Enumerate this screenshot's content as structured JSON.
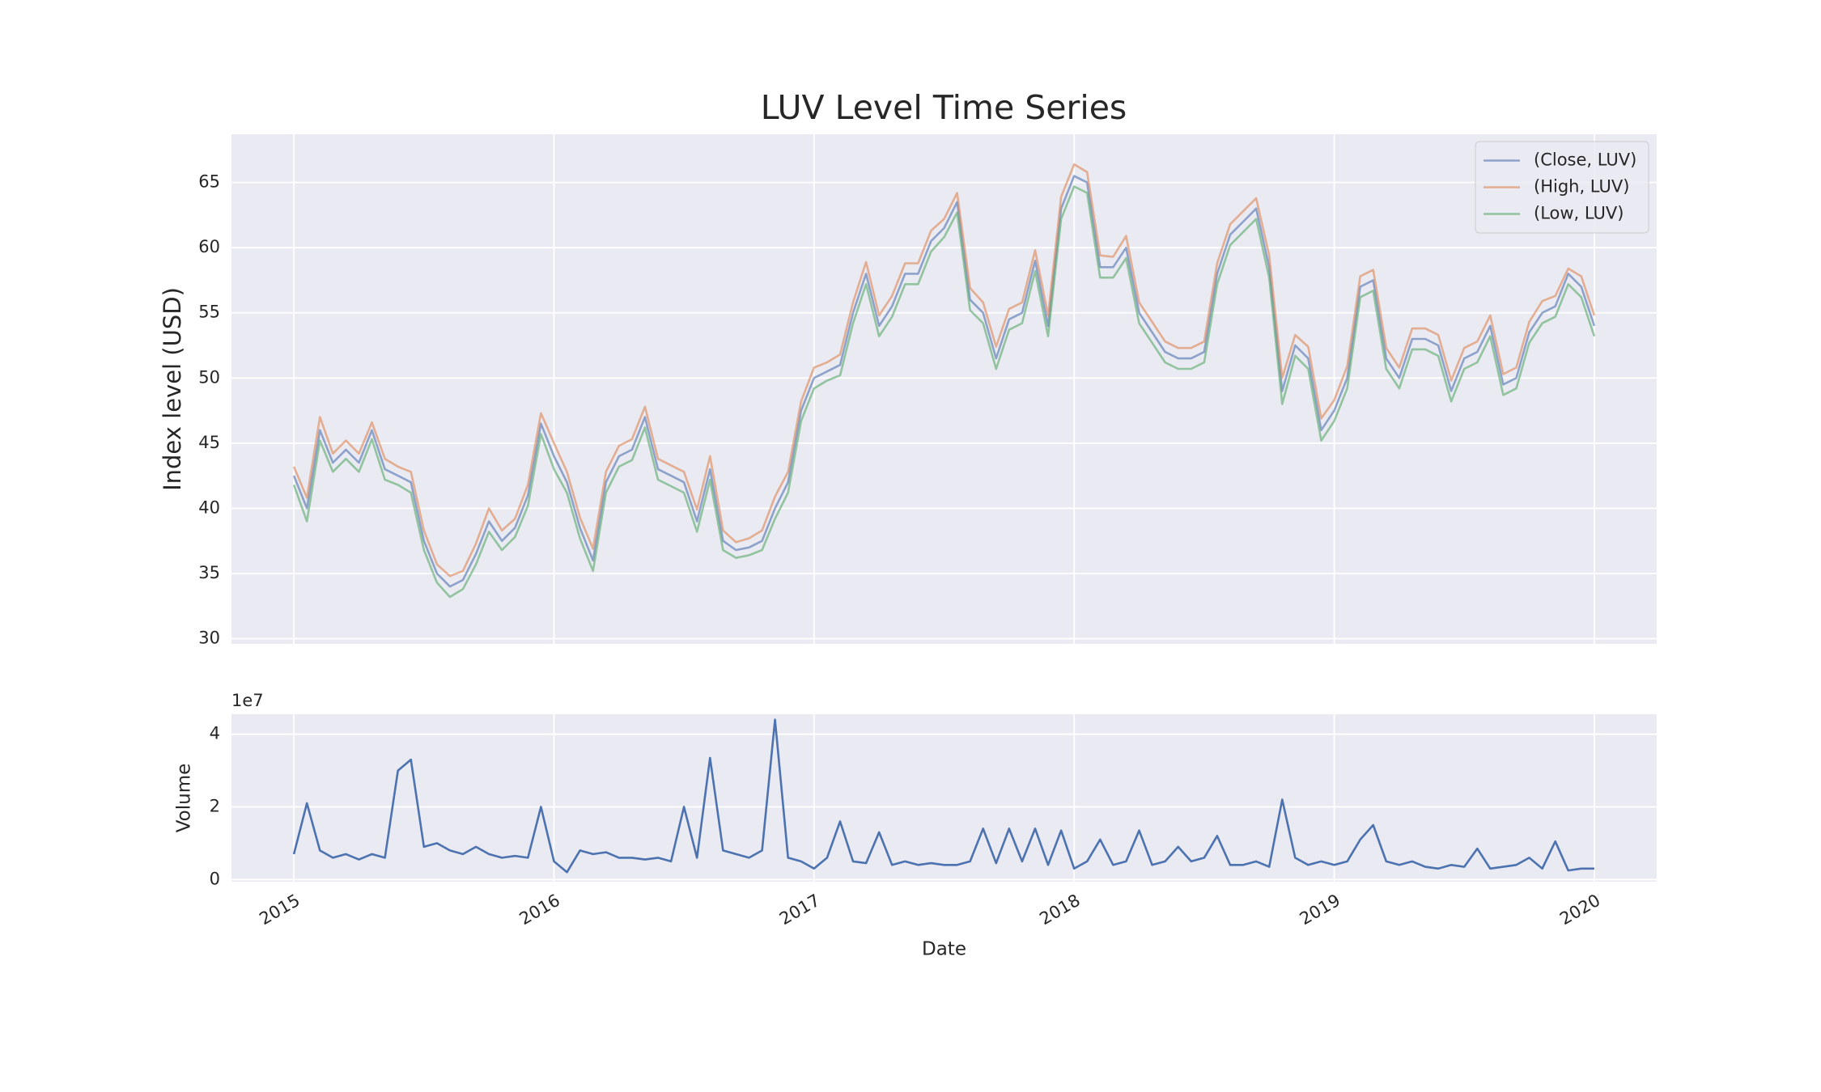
{
  "chart_data": [
    {
      "type": "line",
      "title": "LUV Level Time Series",
      "ylabel": "Index level (USD)",
      "x": [
        2015.0,
        2015.05,
        2015.1,
        2015.15,
        2015.2,
        2015.25,
        2015.3,
        2015.35,
        2015.4,
        2015.45,
        2015.5,
        2015.55,
        2015.6,
        2015.65,
        2015.7,
        2015.75,
        2015.8,
        2015.85,
        2015.9,
        2015.95,
        2016.0,
        2016.05,
        2016.1,
        2016.15,
        2016.2,
        2016.25,
        2016.3,
        2016.35,
        2016.4,
        2016.45,
        2016.5,
        2016.55,
        2016.6,
        2016.65,
        2016.7,
        2016.75,
        2016.8,
        2016.85,
        2016.9,
        2016.95,
        2017.0,
        2017.05,
        2017.1,
        2017.15,
        2017.2,
        2017.25,
        2017.3,
        2017.35,
        2017.4,
        2017.45,
        2017.5,
        2017.55,
        2017.6,
        2017.65,
        2017.7,
        2017.75,
        2017.8,
        2017.85,
        2017.9,
        2017.95,
        2018.0,
        2018.05,
        2018.1,
        2018.15,
        2018.2,
        2018.25,
        2018.3,
        2018.35,
        2018.4,
        2018.45,
        2018.5,
        2018.55,
        2018.6,
        2018.65,
        2018.7,
        2018.75,
        2018.8,
        2018.85,
        2018.9,
        2018.95,
        2019.0,
        2019.05,
        2019.1,
        2019.15,
        2019.2,
        2019.25,
        2019.3,
        2019.35,
        2019.4,
        2019.45,
        2019.5,
        2019.55,
        2019.6,
        2019.65,
        2019.7,
        2019.75,
        2019.8,
        2019.85,
        2019.9,
        2019.95,
        2020.0
      ],
      "series": [
        {
          "name": "(Close, LUV)",
          "color": "#4c72b0",
          "values": [
            42.5,
            40,
            46,
            43.5,
            44.5,
            43.5,
            46,
            43,
            42.5,
            42,
            37.5,
            35,
            34,
            34.5,
            36.5,
            39,
            37.5,
            38.5,
            41,
            46.5,
            44,
            42,
            38.5,
            36,
            42,
            44,
            44.5,
            47,
            43,
            42.5,
            42,
            39,
            43,
            37.5,
            36.8,
            37,
            37.5,
            40,
            42,
            47.5,
            50,
            50.5,
            51,
            55,
            58,
            54,
            55.5,
            58,
            58,
            60.5,
            61.5,
            63.5,
            56,
            55,
            51.5,
            54.5,
            55,
            59,
            54,
            63,
            65.5,
            65,
            58.5,
            58.5,
            60,
            55,
            53.5,
            52,
            51.5,
            51.5,
            52,
            58,
            61,
            62,
            63,
            58.5,
            49,
            52.5,
            51.5,
            46,
            47.5,
            50,
            57,
            57.5,
            51.5,
            50,
            53,
            53,
            52.5,
            49,
            51.5,
            52,
            54,
            49.5,
            50,
            53.5,
            55,
            55.5,
            58,
            57,
            54
          ]
        },
        {
          "name": "(High, LUV)",
          "color": "#dd8452",
          "values": [
            43.2,
            40.8,
            47,
            44.2,
            45.2,
            44.2,
            46.6,
            43.8,
            43.2,
            42.8,
            38.3,
            35.7,
            34.8,
            35.2,
            37.3,
            40,
            38.3,
            39.2,
            41.8,
            47.3,
            45,
            42.8,
            39.3,
            36.9,
            42.8,
            44.8,
            45.3,
            47.8,
            43.8,
            43.3,
            42.8,
            39.9,
            44,
            38.3,
            37.4,
            37.7,
            38.3,
            40.9,
            42.8,
            48.2,
            50.8,
            51.2,
            51.8,
            55.8,
            58.9,
            54.8,
            56.3,
            58.8,
            58.8,
            61.3,
            62.2,
            64.2,
            56.9,
            55.8,
            52.4,
            55.3,
            55.8,
            59.8,
            54.8,
            63.9,
            66.4,
            65.8,
            59.4,
            59.3,
            60.9,
            55.8,
            54.3,
            52.8,
            52.3,
            52.3,
            52.8,
            58.8,
            61.8,
            62.8,
            63.8,
            59.4,
            50,
            53.3,
            52.4,
            46.9,
            48.3,
            50.9,
            57.8,
            58.3,
            52.3,
            50.8,
            53.8,
            53.8,
            53.3,
            49.8,
            52.3,
            52.8,
            54.8,
            50.3,
            50.8,
            54.3,
            55.9,
            56.3,
            58.4,
            57.8,
            54.8
          ]
        },
        {
          "name": "(Low, LUV)",
          "color": "#55a868",
          "values": [
            41.8,
            39,
            45.2,
            42.8,
            43.8,
            42.8,
            45.3,
            42.2,
            41.8,
            41.2,
            36.8,
            34.3,
            33.2,
            33.8,
            35.7,
            38.2,
            36.8,
            37.8,
            40.2,
            45.7,
            43,
            41.2,
            37.7,
            35.2,
            41.2,
            43.2,
            43.7,
            46.2,
            42.2,
            41.7,
            41.2,
            38.2,
            42.2,
            36.8,
            36.2,
            36.4,
            36.8,
            39.2,
            41.2,
            46.7,
            49.2,
            49.8,
            50.2,
            54.2,
            57.2,
            53.2,
            54.7,
            57.2,
            57.2,
            59.7,
            60.8,
            62.7,
            55.2,
            54.2,
            50.7,
            53.7,
            54.2,
            58.2,
            53.2,
            62.2,
            64.7,
            64.2,
            57.7,
            57.7,
            59.2,
            54.2,
            52.7,
            51.2,
            50.7,
            50.7,
            51.2,
            57.2,
            60.2,
            61.2,
            62.2,
            57.7,
            48,
            51.7,
            50.7,
            45.2,
            46.7,
            49.2,
            56.2,
            56.7,
            50.7,
            49.2,
            52.2,
            52.2,
            51.7,
            48.2,
            50.7,
            51.2,
            53.2,
            48.7,
            49.2,
            52.7,
            54.2,
            54.7,
            57.2,
            56.2,
            53.2
          ]
        }
      ],
      "xlim": [
        2014.76,
        2020.24
      ],
      "xticks": [
        2015,
        2016,
        2017,
        2018,
        2019,
        2020
      ],
      "show_xtick_labels": false,
      "ylim": [
        29.6,
        68.7
      ],
      "yticks": [
        30,
        35,
        40,
        45,
        50,
        55,
        60,
        65
      ],
      "grid": true,
      "legend": "upper right",
      "alpha": 0.6
    },
    {
      "type": "line",
      "ylabel": "Volume",
      "xlabel": "Date",
      "y_offset_label": "1e7",
      "x": [
        2015.0,
        2015.05,
        2015.1,
        2015.15,
        2015.2,
        2015.25,
        2015.3,
        2015.35,
        2015.4,
        2015.45,
        2015.5,
        2015.55,
        2015.6,
        2015.65,
        2015.7,
        2015.75,
        2015.8,
        2015.85,
        2015.9,
        2015.95,
        2016.0,
        2016.05,
        2016.1,
        2016.15,
        2016.2,
        2016.25,
        2016.3,
        2016.35,
        2016.4,
        2016.45,
        2016.5,
        2016.55,
        2016.6,
        2016.65,
        2016.7,
        2016.75,
        2016.8,
        2016.85,
        2016.9,
        2016.95,
        2017.0,
        2017.05,
        2017.1,
        2017.15,
        2017.2,
        2017.25,
        2017.3,
        2017.35,
        2017.4,
        2017.45,
        2017.5,
        2017.55,
        2017.6,
        2017.65,
        2017.7,
        2017.75,
        2017.8,
        2017.85,
        2017.9,
        2017.95,
        2018.0,
        2018.05,
        2018.1,
        2018.15,
        2018.2,
        2018.25,
        2018.3,
        2018.35,
        2018.4,
        2018.45,
        2018.5,
        2018.55,
        2018.6,
        2018.65,
        2018.7,
        2018.75,
        2018.8,
        2018.85,
        2018.9,
        2018.95,
        2019.0,
        2019.05,
        2019.1,
        2019.15,
        2019.2,
        2019.25,
        2019.3,
        2019.35,
        2019.4,
        2019.45,
        2019.5,
        2019.55,
        2019.6,
        2019.65,
        2019.7,
        2019.75,
        2019.8,
        2019.85,
        2019.9,
        2019.95,
        2020.0
      ],
      "series": [
        {
          "color": "#4c72b0",
          "values": [
            7000000,
            21000000,
            8000000,
            6000000,
            7000000,
            5500000,
            7000000,
            6000000,
            30000000,
            33000000,
            9000000,
            10000000,
            8000000,
            7000000,
            9000000,
            7000000,
            6000000,
            6500000,
            6000000,
            20000000,
            5000000,
            2000000,
            8000000,
            7000000,
            7500000,
            6000000,
            6000000,
            5500000,
            6000000,
            5000000,
            20000000,
            6000000,
            33500000,
            8000000,
            7000000,
            6000000,
            8000000,
            44000000,
            6000000,
            5000000,
            3000000,
            6000000,
            16000000,
            5000000,
            4500000,
            13000000,
            4000000,
            5000000,
            4000000,
            4500000,
            4000000,
            4000000,
            5000000,
            14000000,
            4500000,
            14000000,
            5000000,
            14000000,
            4000000,
            13500000,
            3000000,
            5000000,
            11000000,
            4000000,
            5000000,
            13500000,
            4000000,
            5000000,
            9000000,
            5000000,
            6000000,
            12000000,
            4000000,
            4000000,
            5000000,
            3500000,
            22000000,
            6000000,
            4000000,
            5000000,
            4000000,
            5000000,
            11000000,
            15000000,
            5000000,
            4000000,
            5000000,
            3500000,
            3000000,
            4000000,
            3500000,
            8500000,
            3000000,
            3500000,
            4000000,
            6000000,
            3000000,
            10500000,
            2500000,
            3000000,
            3000000
          ]
        }
      ],
      "xlim": [
        2014.76,
        2020.24
      ],
      "xticks": [
        2015,
        2016,
        2017,
        2018,
        2019,
        2020
      ],
      "ylim": [
        -600000,
        45500000
      ],
      "yticks": [
        {
          "value": 0,
          "label": "0"
        },
        {
          "value": 20000000,
          "label": "2"
        },
        {
          "value": 40000000,
          "label": "4"
        }
      ],
      "grid": true
    }
  ]
}
